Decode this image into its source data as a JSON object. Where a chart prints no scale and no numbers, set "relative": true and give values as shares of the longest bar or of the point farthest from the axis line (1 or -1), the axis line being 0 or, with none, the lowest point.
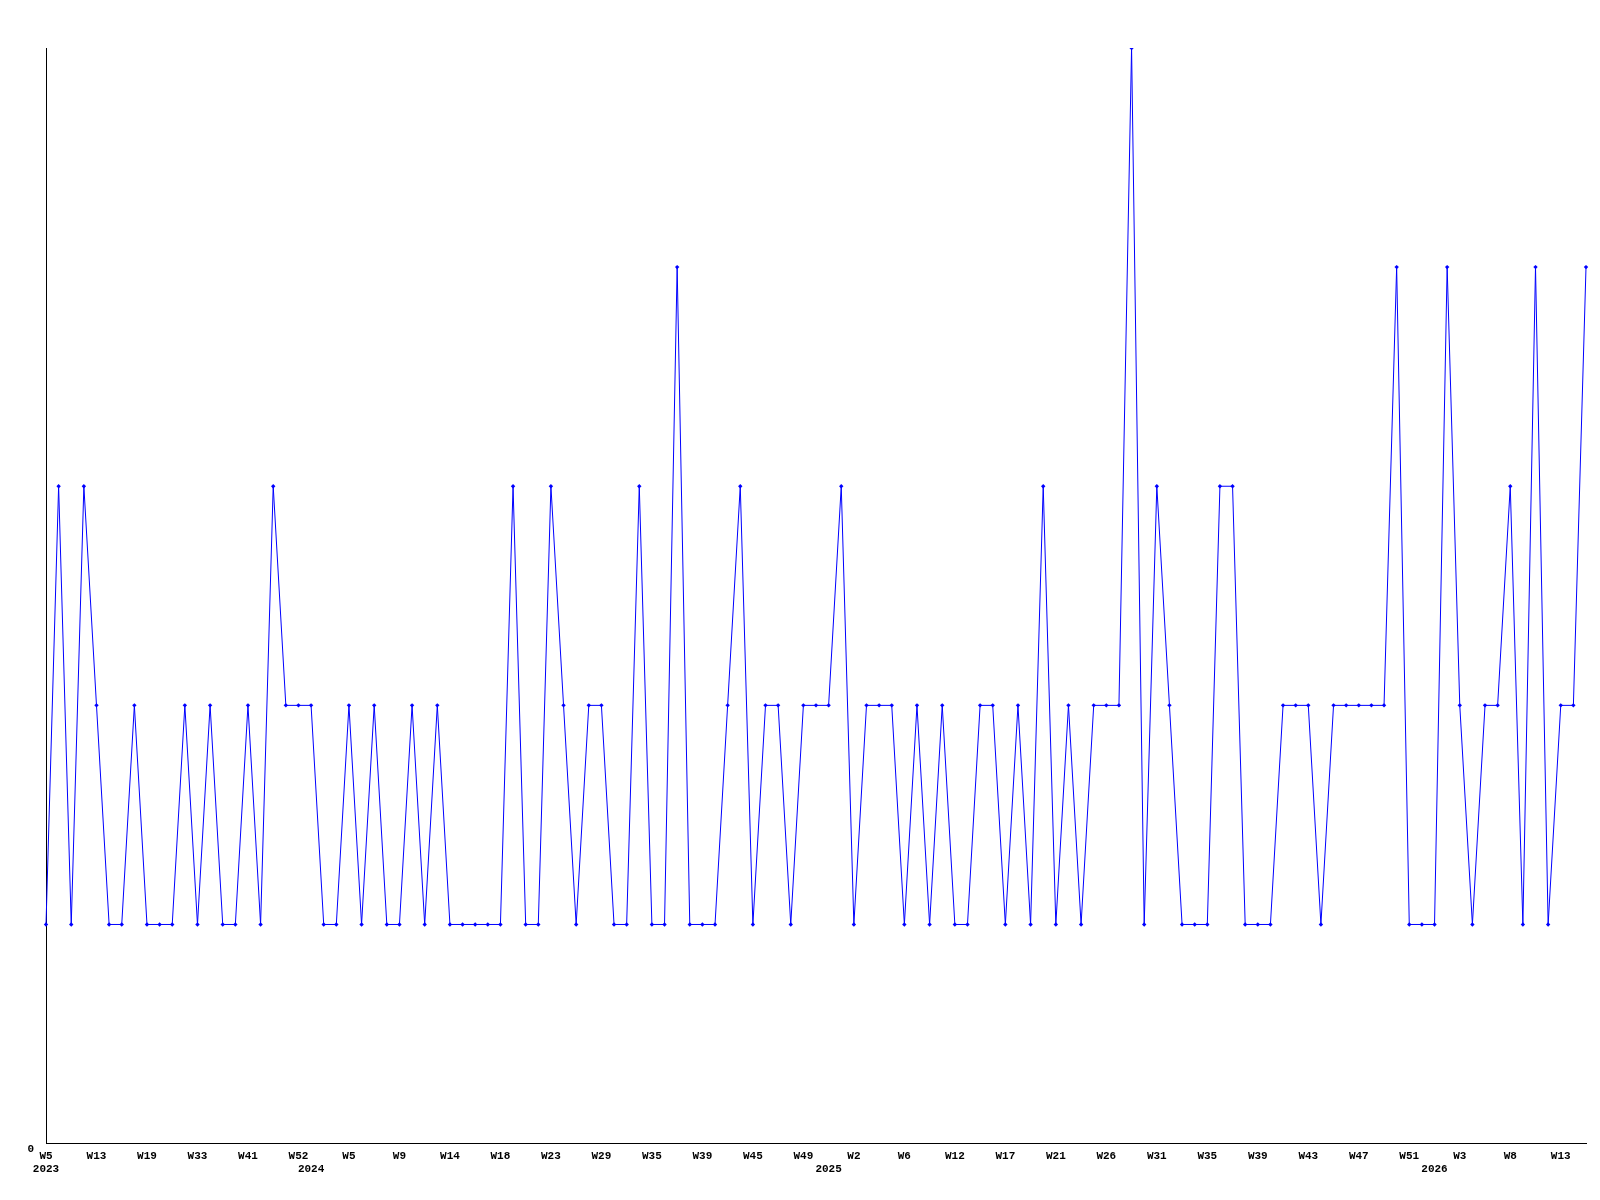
{
  "chart_data": {
    "type": "line",
    "relative": true,
    "color": "#0000ff",
    "marker": "diamond",
    "line_style": "solid",
    "grid": false,
    "legend": false,
    "categories": [
      "W5\n2023",
      null,
      null,
      null,
      "W13",
      null,
      null,
      null,
      "W19",
      null,
      null,
      null,
      "W33",
      null,
      null,
      null,
      "W41",
      null,
      null,
      null,
      "W52",
      "\n2024",
      null,
      null,
      "W5",
      null,
      null,
      null,
      "W9",
      null,
      null,
      null,
      "W14",
      null,
      null,
      null,
      "W18",
      null,
      null,
      null,
      "W23",
      null,
      null,
      null,
      "W29",
      null,
      null,
      null,
      "W35",
      null,
      null,
      null,
      "W39",
      null,
      null,
      null,
      "W45",
      null,
      null,
      null,
      "W49",
      null,
      "\n2025",
      null,
      "W2",
      null,
      null,
      null,
      "W6",
      null,
      null,
      null,
      "W12",
      null,
      null,
      null,
      "W17",
      null,
      null,
      null,
      "W21",
      null,
      null,
      null,
      "W26",
      null,
      null,
      null,
      "W31",
      null,
      null,
      null,
      "W35",
      null,
      null,
      null,
      "W39",
      null,
      null,
      null,
      "W43",
      null,
      null,
      null,
      "W47",
      null,
      null,
      null,
      "W51",
      null,
      "\n2026",
      null,
      "W3",
      null,
      null,
      null,
      "W8",
      null,
      null,
      null,
      "W13",
      null,
      null
    ],
    "values": [
      0.2,
      0.6,
      0.2,
      0.6,
      0.4,
      0.2,
      0.2,
      0.4,
      0.2,
      0.2,
      0.2,
      0.4,
      0.2,
      0.4,
      0.2,
      0.2,
      0.4,
      0.2,
      0.6,
      0.4,
      0.4,
      0.4,
      0.2,
      0.2,
      0.4,
      0.2,
      0.4,
      0.2,
      0.2,
      0.4,
      0.2,
      0.4,
      0.2,
      0.2,
      0.2,
      0.2,
      0.2,
      0.6,
      0.2,
      0.2,
      0.6,
      0.4,
      0.2,
      0.4,
      0.4,
      0.2,
      0.2,
      0.6,
      0.2,
      0.2,
      0.8,
      0.2,
      0.2,
      0.2,
      0.4,
      0.6,
      0.2,
      0.4,
      0.4,
      0.2,
      0.4,
      0.4,
      0.4,
      0.6,
      0.2,
      0.4,
      0.4,
      0.4,
      0.2,
      0.4,
      0.2,
      0.4,
      0.2,
      0.2,
      0.4,
      0.4,
      0.2,
      0.4,
      0.2,
      0.6,
      0.2,
      0.4,
      0.2,
      0.4,
      0.4,
      0.4,
      1,
      0.2,
      0.6,
      0.4,
      0.2,
      0.2,
      0.2,
      0.6,
      0.6,
      0.2,
      0.2,
      0.2,
      0.4,
      0.4,
      0.4,
      0.2,
      0.4,
      0.4,
      0.4,
      0.4,
      0.4,
      0.8,
      0.2,
      0.2,
      0.2,
      0.8,
      0.4,
      0.2,
      0.4,
      0.4,
      0.6,
      0.2,
      0.8,
      0.2,
      0.4,
      0.4,
      0.8
    ],
    "annotations": [
      "0"
    ]
  }
}
